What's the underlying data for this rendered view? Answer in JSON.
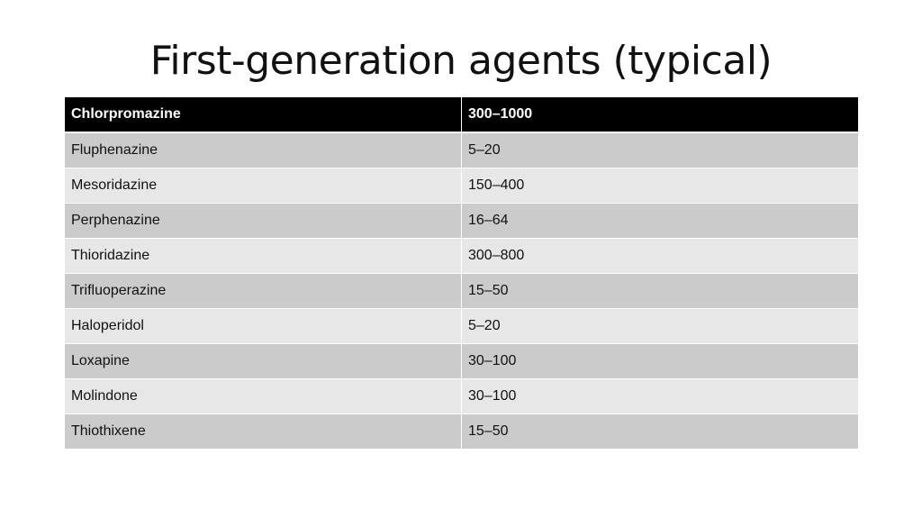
{
  "slide": {
    "title": "First-generation agents (typical)"
  },
  "table": {
    "header": {
      "drug": "Chlorpromazine",
      "dose": "300–1000"
    },
    "rows": [
      {
        "drug": "Fluphenazine",
        "dose": "5–20"
      },
      {
        "drug": "Mesoridazine",
        "dose": "150–400"
      },
      {
        "drug": "Perphenazine",
        "dose": "16–64"
      },
      {
        "drug": "Thioridazine",
        "dose": "300–800"
      },
      {
        "drug": "Trifluoperazine",
        "dose": "15–50"
      },
      {
        "drug": "Haloperidol",
        "dose": "5–20"
      },
      {
        "drug": "Loxapine",
        "dose": "30–100"
      },
      {
        "drug": "Molindone",
        "dose": "30–100"
      },
      {
        "drug": "Thiothixene",
        "dose": "15–50"
      }
    ]
  },
  "colors": {
    "header_bg": "#000000",
    "row_band_dark": "#cbcbcb",
    "row_band_light": "#e7e7e7"
  }
}
